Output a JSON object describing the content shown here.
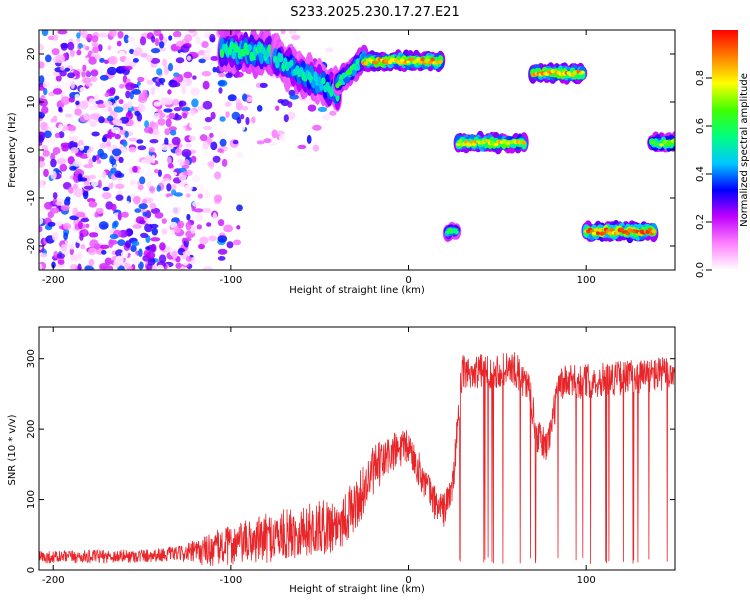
{
  "figure": {
    "title": "S233.2025.230.17.27.E21"
  },
  "chart_data": [
    {
      "type": "heatmap",
      "xlabel": "Height of straight line (km)",
      "ylabel": "Frequency (Hz)",
      "xlim": [
        -208,
        150
      ],
      "ylim": [
        -25,
        25
      ],
      "x_ticks": [
        -200,
        -100,
        0,
        100
      ],
      "y_ticks": [
        -20,
        -10,
        0,
        10,
        20
      ],
      "colorbar": {
        "label": "Normalized spectral amplitude",
        "range": [
          0,
          1
        ],
        "ticks": [
          "0.0",
          "0.2",
          "0.4",
          "0.6",
          "0.8"
        ],
        "colormap": [
          "#ffffff",
          "#ff80ff",
          "#c000ff",
          "#0000ff",
          "#00c8ff",
          "#00ff80",
          "#40ff00",
          "#ffff00",
          "#ff8000",
          "#ff0000"
        ]
      },
      "noise_regions": [
        {
          "x": [
            -208,
            -120
          ],
          "y": [
            -25,
            25
          ],
          "density": 0.9
        },
        {
          "x": [
            -120,
            -95
          ],
          "y": [
            -25,
            25
          ],
          "density": 0.35
        },
        {
          "x": [
            -95,
            -40
          ],
          "y": [
            0,
            25
          ],
          "density": 0.25
        }
      ],
      "features": [
        {
          "x": [
            -105,
            -75
          ],
          "y_start": 21,
          "y_end": 20,
          "amp": 0.55,
          "width": 4
        },
        {
          "x": [
            -75,
            -40
          ],
          "y_start": 19,
          "y_end": 12,
          "amp": 0.5,
          "width": 4
        },
        {
          "x": [
            -40,
            -25
          ],
          "y_start": 14,
          "y_end": 19,
          "amp": 0.6,
          "width": 2.5
        },
        {
          "x": [
            -25,
            18
          ],
          "y_start": 18.5,
          "y_end": 18.5,
          "amp": 0.85,
          "width": 1.8
        },
        {
          "x": [
            28,
            65
          ],
          "y_start": 1.5,
          "y_end": 1.5,
          "amp": 0.8,
          "width": 1.8
        },
        {
          "x": [
            70,
            98
          ],
          "y_start": 16,
          "y_end": 16,
          "amp": 0.85,
          "width": 1.8
        },
        {
          "x": [
            100,
            138
          ],
          "y_start": -17,
          "y_end": -17,
          "amp": 0.9,
          "width": 1.8
        },
        {
          "x": [
            137,
            150
          ],
          "y_start": 1.5,
          "y_end": 1.5,
          "amp": 0.7,
          "width": 1.8
        },
        {
          "x": [
            22,
            27
          ],
          "y_start": -17,
          "y_end": -17,
          "amp": 0.6,
          "width": 1.5
        }
      ]
    },
    {
      "type": "line",
      "xlabel": "Height of straight line (km)",
      "ylabel": "SNR (10 * v/v)",
      "xlim": [
        -208,
        150
      ],
      "ylim": [
        0,
        345
      ],
      "x_ticks": [
        -200,
        -100,
        0,
        100
      ],
      "y_ticks": [
        0,
        100,
        200,
        300
      ],
      "color": "#e8262a",
      "trend": [
        [
          -208,
          18
        ],
        [
          -150,
          20
        ],
        [
          -120,
          25
        ],
        [
          -100,
          35
        ],
        [
          -80,
          45
        ],
        [
          -60,
          55
        ],
        [
          -40,
          65
        ],
        [
          -30,
          90
        ],
        [
          -20,
          140
        ],
        [
          -10,
          165
        ],
        [
          0,
          175
        ],
        [
          10,
          120
        ],
        [
          15,
          95
        ],
        [
          20,
          85
        ],
        [
          25,
          120
        ],
        [
          30,
          280
        ],
        [
          60,
          285
        ],
        [
          68,
          260
        ],
        [
          72,
          190
        ],
        [
          78,
          175
        ],
        [
          85,
          265
        ],
        [
          150,
          280
        ]
      ],
      "noise": [
        [
          -208,
          9
        ],
        [
          -130,
          10
        ],
        [
          -110,
          25
        ],
        [
          -80,
          35
        ],
        [
          -40,
          40
        ],
        [
          -20,
          35
        ],
        [
          0,
          25
        ],
        [
          25,
          25
        ],
        [
          30,
          25
        ],
        [
          150,
          25
        ]
      ],
      "dropout_range": [
        28,
        150
      ],
      "dropout_probability": 0.035,
      "dropout_floor": 8
    }
  ]
}
